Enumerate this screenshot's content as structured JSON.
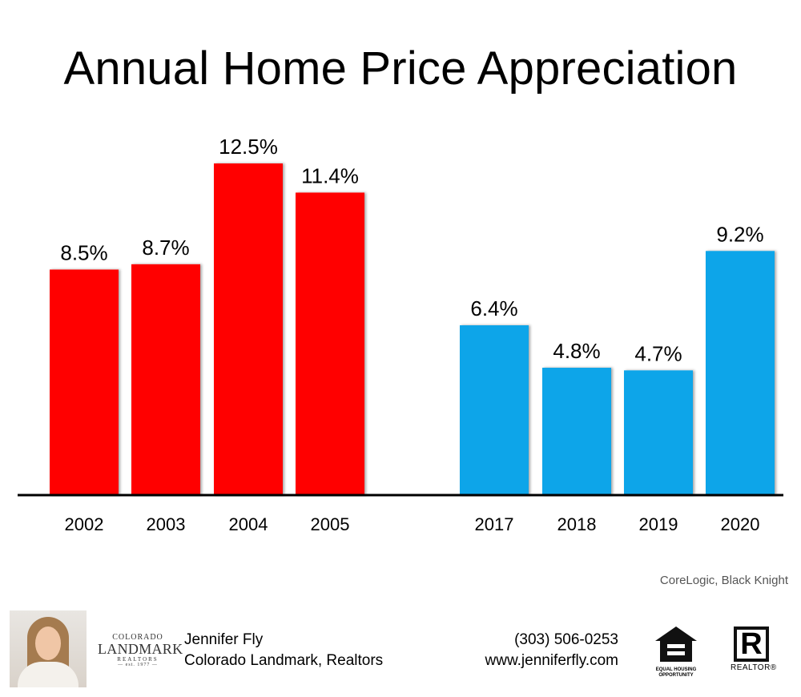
{
  "title": "Annual Home Price Appreciation",
  "source": "CoreLogic, Black Knight",
  "chart_data": {
    "type": "bar",
    "title": "Annual Home Price Appreciation",
    "categories": [
      "2002",
      "2003",
      "2004",
      "2005",
      "2017",
      "2018",
      "2019",
      "2020"
    ],
    "values": [
      8.5,
      8.7,
      12.5,
      11.4,
      6.4,
      4.8,
      4.7,
      9.2
    ],
    "data_labels": [
      "8.5%",
      "8.7%",
      "12.5%",
      "11.4%",
      "6.4%",
      "4.8%",
      "4.7%",
      "9.2%"
    ],
    "series": [
      {
        "group": "2002-2005",
        "color": "#ff0000"
      },
      {
        "group": "2017-2020",
        "color": "#0ea5e9"
      }
    ],
    "ylim": [
      0,
      12.5
    ],
    "grid": false,
    "legend": "none"
  },
  "footer": {
    "agent_name": "Jennifer Fly",
    "brokerage": "Colorado Landmark, Realtors",
    "phone": "(303) 506-0253",
    "website": "www.jenniferfly.com",
    "logo_line1": "COLORADO",
    "logo_line2": "LANDMARK",
    "logo_line3": "REALTORS",
    "logo_line4": "— est. 1977 —",
    "eho_label": "EQUAL HOUSING OPPORTUNITY",
    "realtor_letter": "R",
    "realtor_label": "REALTOR®",
    "photo_icon": "agent-portrait",
    "eho_icon": "equal-housing-house-icon",
    "realtor_icon": "realtor-r-icon"
  }
}
